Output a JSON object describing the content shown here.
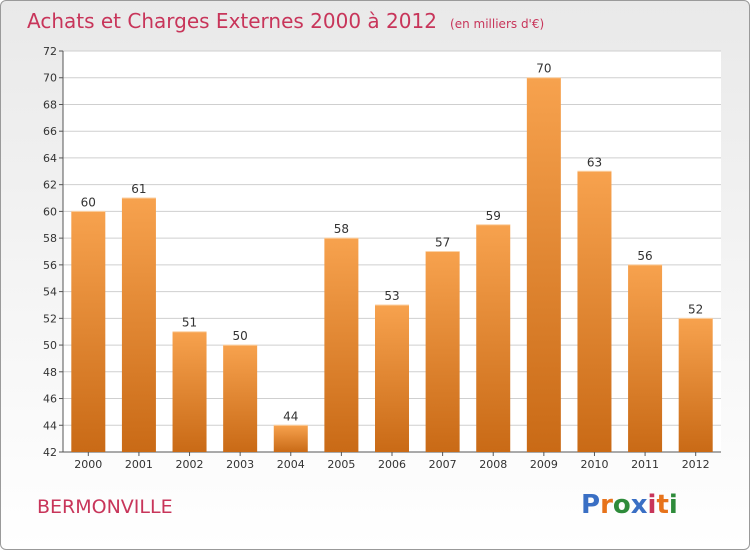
{
  "title": "Achats et Charges Externes 2000 à 2012",
  "unit": "(en milliers d'€)",
  "commune": "BERMONVILLE",
  "logo": {
    "text": "Proxiti",
    "colors": [
      "#3a6fc4",
      "#e7731b",
      "#2e8b3a",
      "#3a6fc4",
      "#c8355a",
      "#e7731b",
      "#2e8b3a"
    ]
  },
  "colors": {
    "bar_top": "#f7a24e",
    "bar_bottom": "#c96a16",
    "grid": "#cfcfcf",
    "title": "#c8355a"
  },
  "chart_data": {
    "type": "bar",
    "categories": [
      "2000",
      "2001",
      "2002",
      "2003",
      "2004",
      "2005",
      "2006",
      "2007",
      "2008",
      "2009",
      "2010",
      "2011",
      "2012"
    ],
    "values": [
      60,
      61,
      51,
      50,
      44,
      58,
      53,
      57,
      59,
      70,
      63,
      56,
      52
    ],
    "ylim": [
      42,
      72
    ],
    "yticks": [
      42,
      44,
      46,
      48,
      50,
      52,
      54,
      56,
      58,
      60,
      62,
      64,
      66,
      68,
      70,
      72
    ],
    "grid": true,
    "data_labels": true
  }
}
